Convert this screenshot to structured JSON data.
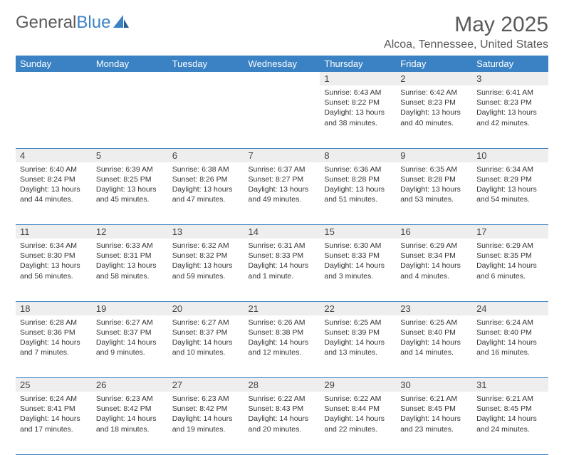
{
  "logo": {
    "text1": "General",
    "text2": "Blue"
  },
  "title": "May 2025",
  "location": "Alcoa, Tennessee, United States",
  "colors": {
    "header_bg": "#3b82c4",
    "header_text": "#ffffff",
    "daynum_bg": "#eeeeee",
    "border": "#3b82c4",
    "page_bg": "#ffffff",
    "title_color": "#5a5a5a"
  },
  "weekdays": [
    "Sunday",
    "Monday",
    "Tuesday",
    "Wednesday",
    "Thursday",
    "Friday",
    "Saturday"
  ],
  "weeks": [
    {
      "nums": [
        "",
        "",
        "",
        "",
        "1",
        "2",
        "3"
      ],
      "cells": [
        null,
        null,
        null,
        null,
        {
          "sunrise": "Sunrise: 6:43 AM",
          "sunset": "Sunset: 8:22 PM",
          "daylight": "Daylight: 13 hours and 38 minutes."
        },
        {
          "sunrise": "Sunrise: 6:42 AM",
          "sunset": "Sunset: 8:23 PM",
          "daylight": "Daylight: 13 hours and 40 minutes."
        },
        {
          "sunrise": "Sunrise: 6:41 AM",
          "sunset": "Sunset: 8:23 PM",
          "daylight": "Daylight: 13 hours and 42 minutes."
        }
      ]
    },
    {
      "nums": [
        "4",
        "5",
        "6",
        "7",
        "8",
        "9",
        "10"
      ],
      "cells": [
        {
          "sunrise": "Sunrise: 6:40 AM",
          "sunset": "Sunset: 8:24 PM",
          "daylight": "Daylight: 13 hours and 44 minutes."
        },
        {
          "sunrise": "Sunrise: 6:39 AM",
          "sunset": "Sunset: 8:25 PM",
          "daylight": "Daylight: 13 hours and 45 minutes."
        },
        {
          "sunrise": "Sunrise: 6:38 AM",
          "sunset": "Sunset: 8:26 PM",
          "daylight": "Daylight: 13 hours and 47 minutes."
        },
        {
          "sunrise": "Sunrise: 6:37 AM",
          "sunset": "Sunset: 8:27 PM",
          "daylight": "Daylight: 13 hours and 49 minutes."
        },
        {
          "sunrise": "Sunrise: 6:36 AM",
          "sunset": "Sunset: 8:28 PM",
          "daylight": "Daylight: 13 hours and 51 minutes."
        },
        {
          "sunrise": "Sunrise: 6:35 AM",
          "sunset": "Sunset: 8:28 PM",
          "daylight": "Daylight: 13 hours and 53 minutes."
        },
        {
          "sunrise": "Sunrise: 6:34 AM",
          "sunset": "Sunset: 8:29 PM",
          "daylight": "Daylight: 13 hours and 54 minutes."
        }
      ]
    },
    {
      "nums": [
        "11",
        "12",
        "13",
        "14",
        "15",
        "16",
        "17"
      ],
      "cells": [
        {
          "sunrise": "Sunrise: 6:34 AM",
          "sunset": "Sunset: 8:30 PM",
          "daylight": "Daylight: 13 hours and 56 minutes."
        },
        {
          "sunrise": "Sunrise: 6:33 AM",
          "sunset": "Sunset: 8:31 PM",
          "daylight": "Daylight: 13 hours and 58 minutes."
        },
        {
          "sunrise": "Sunrise: 6:32 AM",
          "sunset": "Sunset: 8:32 PM",
          "daylight": "Daylight: 13 hours and 59 minutes."
        },
        {
          "sunrise": "Sunrise: 6:31 AM",
          "sunset": "Sunset: 8:33 PM",
          "daylight": "Daylight: 14 hours and 1 minute."
        },
        {
          "sunrise": "Sunrise: 6:30 AM",
          "sunset": "Sunset: 8:33 PM",
          "daylight": "Daylight: 14 hours and 3 minutes."
        },
        {
          "sunrise": "Sunrise: 6:29 AM",
          "sunset": "Sunset: 8:34 PM",
          "daylight": "Daylight: 14 hours and 4 minutes."
        },
        {
          "sunrise": "Sunrise: 6:29 AM",
          "sunset": "Sunset: 8:35 PM",
          "daylight": "Daylight: 14 hours and 6 minutes."
        }
      ]
    },
    {
      "nums": [
        "18",
        "19",
        "20",
        "21",
        "22",
        "23",
        "24"
      ],
      "cells": [
        {
          "sunrise": "Sunrise: 6:28 AM",
          "sunset": "Sunset: 8:36 PM",
          "daylight": "Daylight: 14 hours and 7 minutes."
        },
        {
          "sunrise": "Sunrise: 6:27 AM",
          "sunset": "Sunset: 8:37 PM",
          "daylight": "Daylight: 14 hours and 9 minutes."
        },
        {
          "sunrise": "Sunrise: 6:27 AM",
          "sunset": "Sunset: 8:37 PM",
          "daylight": "Daylight: 14 hours and 10 minutes."
        },
        {
          "sunrise": "Sunrise: 6:26 AM",
          "sunset": "Sunset: 8:38 PM",
          "daylight": "Daylight: 14 hours and 12 minutes."
        },
        {
          "sunrise": "Sunrise: 6:25 AM",
          "sunset": "Sunset: 8:39 PM",
          "daylight": "Daylight: 14 hours and 13 minutes."
        },
        {
          "sunrise": "Sunrise: 6:25 AM",
          "sunset": "Sunset: 8:40 PM",
          "daylight": "Daylight: 14 hours and 14 minutes."
        },
        {
          "sunrise": "Sunrise: 6:24 AM",
          "sunset": "Sunset: 8:40 PM",
          "daylight": "Daylight: 14 hours and 16 minutes."
        }
      ]
    },
    {
      "nums": [
        "25",
        "26",
        "27",
        "28",
        "29",
        "30",
        "31"
      ],
      "cells": [
        {
          "sunrise": "Sunrise: 6:24 AM",
          "sunset": "Sunset: 8:41 PM",
          "daylight": "Daylight: 14 hours and 17 minutes."
        },
        {
          "sunrise": "Sunrise: 6:23 AM",
          "sunset": "Sunset: 8:42 PM",
          "daylight": "Daylight: 14 hours and 18 minutes."
        },
        {
          "sunrise": "Sunrise: 6:23 AM",
          "sunset": "Sunset: 8:42 PM",
          "daylight": "Daylight: 14 hours and 19 minutes."
        },
        {
          "sunrise": "Sunrise: 6:22 AM",
          "sunset": "Sunset: 8:43 PM",
          "daylight": "Daylight: 14 hours and 20 minutes."
        },
        {
          "sunrise": "Sunrise: 6:22 AM",
          "sunset": "Sunset: 8:44 PM",
          "daylight": "Daylight: 14 hours and 22 minutes."
        },
        {
          "sunrise": "Sunrise: 6:21 AM",
          "sunset": "Sunset: 8:45 PM",
          "daylight": "Daylight: 14 hours and 23 minutes."
        },
        {
          "sunrise": "Sunrise: 6:21 AM",
          "sunset": "Sunset: 8:45 PM",
          "daylight": "Daylight: 14 hours and 24 minutes."
        }
      ]
    }
  ]
}
